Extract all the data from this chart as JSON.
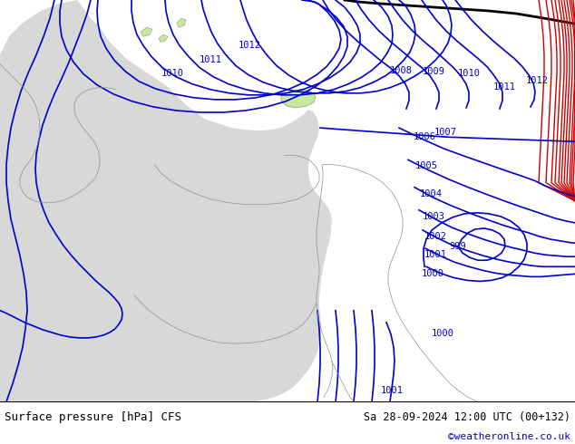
{
  "title_left": "Surface pressure [hPa] CFS",
  "title_right": "Sa 28-09-2024 12:00 UTC (00+132)",
  "copyright": "©weatheronline.co.uk",
  "bg_color": "#c8e8a0",
  "land_color": "#c8e8a0",
  "sea_color": "#d8d8d8",
  "border_color": "#909090",
  "contour_blue": "#0000cc",
  "contour_red": "#cc0000",
  "contour_black": "#000000",
  "lw": 1.2,
  "lw_black": 2.0,
  "label_fs": 7.5,
  "copyright_color": "#0000cc"
}
